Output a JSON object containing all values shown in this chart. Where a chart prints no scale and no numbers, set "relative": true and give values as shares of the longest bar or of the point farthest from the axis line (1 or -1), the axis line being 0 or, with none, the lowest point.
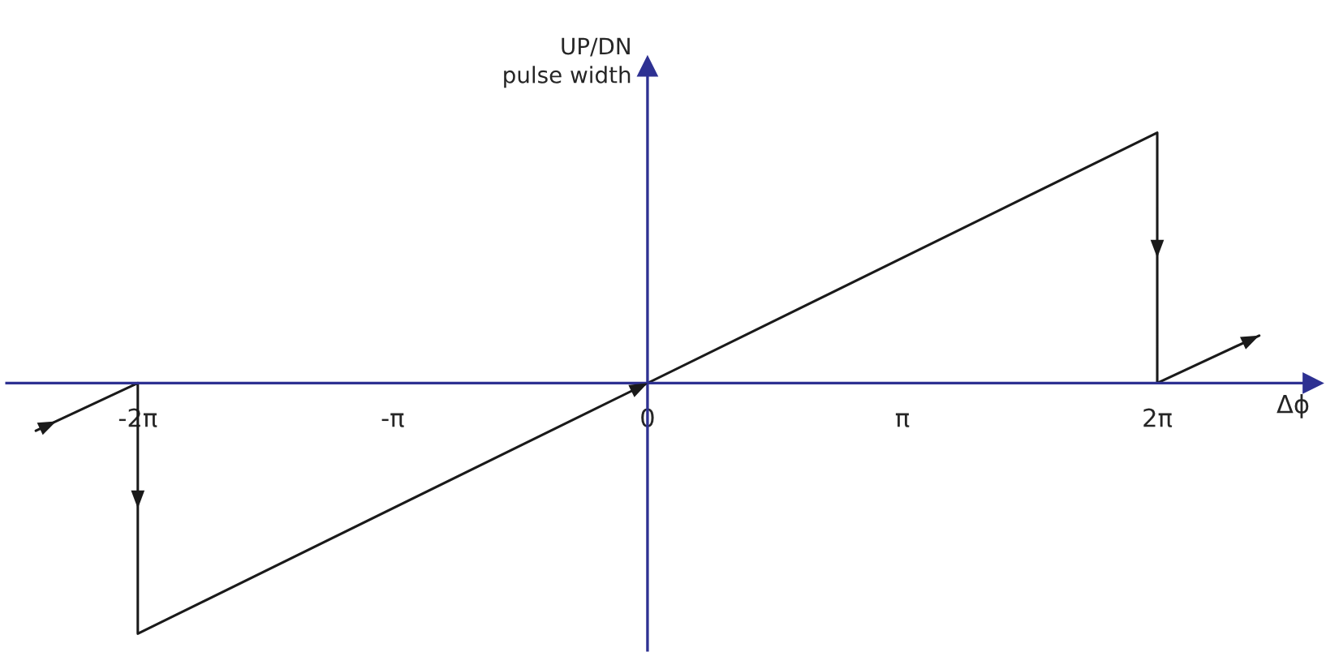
{
  "chart_data": {
    "type": "line",
    "relative": true,
    "xlabel": "Δϕ",
    "ylabel": "UP/DN\npulse width",
    "x": [
      -7.54,
      -6.2832,
      -6.2832,
      6.2832,
      6.2832,
      7.54
    ],
    "series": [
      {
        "color": "#1a1a1a",
        "values": [
          -0.19,
          0,
          -1,
          1,
          0,
          0.19
        ]
      }
    ],
    "xlim": [
      -7.9,
      8.2
    ],
    "xticks": [
      {
        "value": -6.2832,
        "label": "-2π"
      },
      {
        "value": -3.1416,
        "label": "-π"
      },
      {
        "value": 0,
        "label": "0"
      },
      {
        "value": 3.1416,
        "label": "π"
      },
      {
        "value": 6.2832,
        "label": "2π"
      }
    ],
    "ref_lines": [
      {
        "axis": "x",
        "value": 0,
        "color": "#2e3192"
      }
    ],
    "tick_labels": "x",
    "grid": false,
    "marker": "none",
    "line_style": "solid"
  }
}
